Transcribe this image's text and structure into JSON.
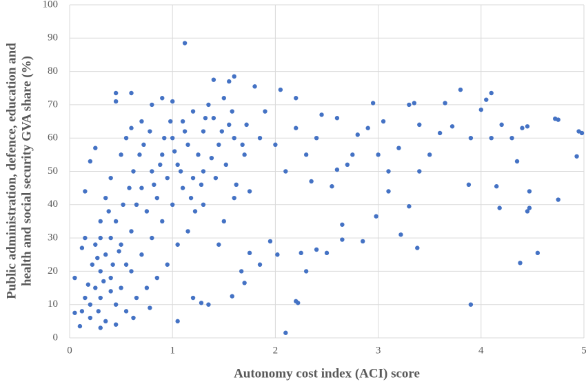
{
  "chart_data": {
    "type": "scatter",
    "xlabel": "Autonomy cost index (ACI) score",
    "ylabel": [
      "Public administration, defence, education and",
      "health and social security GVA share (%)"
    ],
    "color": "#4472c4",
    "grid": true,
    "xlim": [
      0,
      5
    ],
    "xticks": [
      0,
      1,
      2,
      3,
      4,
      5
    ],
    "ylim": [
      0,
      100
    ],
    "yticks": [
      0,
      10,
      20,
      30,
      40,
      50,
      60,
      70,
      80,
      90,
      100
    ],
    "x": [
      1.12,
      1.6,
      1.55,
      1.4,
      2.05,
      2.2,
      3.8,
      4.1,
      4.05,
      3.65,
      3.35,
      3.3,
      2.95,
      4.45,
      4.75,
      4.72,
      4.95,
      4.98,
      4.93,
      4.75,
      4.55,
      4.38,
      4.47,
      4.45,
      4.47,
      4.15,
      4.18,
      3.88,
      3.9,
      3.38,
      3.22,
      3.3,
      2.98,
      2.85,
      2.65,
      2.65,
      2.5,
      2.4,
      2.3,
      2.2,
      2.22,
      2.1,
      2.25,
      2.02,
      1.95,
      1.85,
      1.75,
      1.67,
      1.7,
      1.58,
      1.2,
      1.28,
      1.35,
      1.05,
      3.4,
      3.1,
      3.1,
      3.0,
      3.2,
      3.6,
      3.72,
      3.9,
      4.2,
      4.3,
      4.35,
      4.4,
      4.1,
      4.0,
      3.5,
      3.4,
      2.8,
      2.75,
      2.9,
      3.05,
      2.6,
      2.7,
      2.55,
      2.6,
      2.4,
      2.45,
      2.3,
      2.35,
      2.2,
      2.0,
      2.1,
      1.9,
      1.8,
      1.85,
      1.7,
      1.75,
      1.6,
      1.5,
      1.45,
      1.3,
      0.45,
      0.6,
      0.45,
      0.25,
      0.2,
      0.15,
      0.05,
      0.05,
      0.1,
      0.15,
      0.12,
      0.2,
      0.25,
      0.3,
      0.35,
      0.4,
      0.3,
      0.2,
      0.28,
      0.35,
      0.45,
      0.5,
      0.55,
      0.4,
      0.45,
      0.5,
      0.6,
      0.65,
      0.7,
      0.75,
      0.8,
      0.85,
      0.9,
      0.95,
      1.0,
      1.05,
      1.1,
      1.15,
      1.2,
      1.25,
      1.3,
      1.35,
      1.4,
      1.45,
      1.5,
      1.55,
      1.6,
      0.3,
      0.35,
      0.4,
      0.5,
      0.55,
      0.6,
      0.7,
      0.8,
      0.9,
      1.0,
      0.6,
      0.7,
      0.8,
      0.9,
      1.0,
      1.1,
      1.2,
      1.3,
      0.65,
      0.75,
      0.85,
      0.95,
      1.05,
      1.15,
      0.22,
      0.18,
      0.15,
      0.12,
      0.25,
      0.3,
      0.38,
      0.42,
      0.48,
      0.52,
      0.58,
      0.62,
      0.68,
      0.72,
      0.78,
      0.82,
      0.88,
      0.92,
      0.98,
      1.02,
      1.08,
      1.12,
      1.18,
      1.22,
      1.28,
      1.32,
      1.38,
      1.42,
      1.48,
      1.52,
      1.58,
      1.62,
      1.68,
      1.72,
      0.55,
      0.45,
      0.3,
      0.62,
      0.78,
      0.4,
      0.33,
      0.27
    ],
    "values": [
      88.5,
      78.5,
      77,
      77.5,
      74.5,
      72,
      74.5,
      73.5,
      71.5,
      70.5,
      70.5,
      70,
      70.5,
      63.5,
      65.5,
      65.8,
      62,
      61.5,
      54.5,
      41.5,
      25.5,
      22.5,
      39,
      38,
      44,
      45.5,
      39,
      46,
      10,
      27,
      31,
      39.5,
      36.5,
      29,
      34,
      29.5,
      25.5,
      26.5,
      20,
      11,
      10.5,
      1.5,
      25.5,
      25,
      29,
      22,
      25.5,
      20,
      16.5,
      12.5,
      12,
      10.5,
      10,
      5,
      50,
      50,
      44,
      55,
      57,
      61.5,
      63.5,
      60,
      64,
      60,
      53,
      63,
      60,
      68.5,
      55,
      64,
      61,
      55,
      63,
      65,
      66,
      52,
      45.5,
      50.5,
      60,
      67,
      55,
      47,
      63,
      58,
      50,
      68,
      75.5,
      60,
      55,
      44,
      42,
      35,
      28,
      40,
      73.5,
      73.5,
      71,
      57,
      53,
      44,
      18,
      7.5,
      3.5,
      30,
      27,
      10,
      15,
      20,
      25,
      18,
      12,
      6,
      8,
      5,
      10,
      15,
      22,
      30,
      35,
      28,
      32,
      40,
      45,
      38,
      50,
      42,
      55,
      48,
      60,
      52,
      65,
      58,
      68,
      55,
      62,
      70,
      66,
      58,
      72,
      64,
      60,
      35,
      42,
      48,
      55,
      60,
      63,
      65,
      70,
      72,
      71,
      20,
      25,
      30,
      35,
      40,
      45,
      48,
      50,
      12,
      15,
      18,
      22,
      28,
      32,
      22,
      16,
      12,
      8,
      28,
      30,
      38,
      22,
      26,
      40,
      45,
      50,
      55,
      58,
      62,
      46,
      52,
      60,
      65,
      56,
      50,
      62,
      42,
      38,
      46,
      66,
      54,
      48,
      62,
      52,
      68,
      46,
      58,
      64,
      8,
      4,
      3,
      6,
      9,
      14,
      17,
      24
    ]
  }
}
